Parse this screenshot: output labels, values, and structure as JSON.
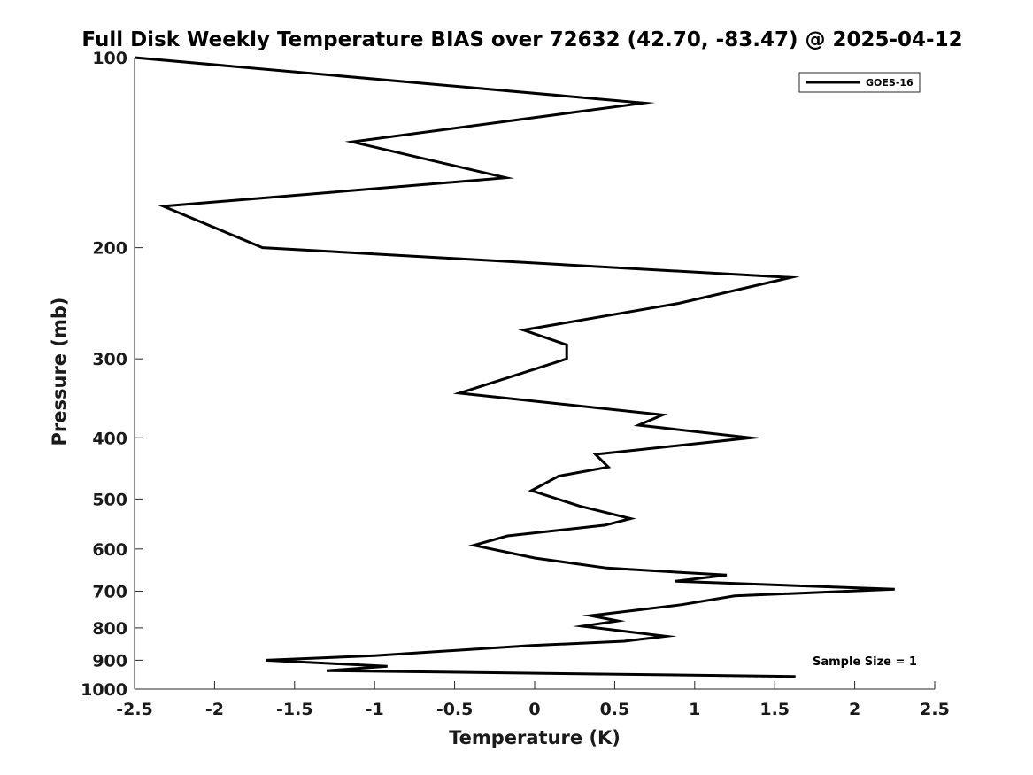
{
  "chart_data": {
    "type": "line",
    "title": "Full Disk Weekly Temperature BIAS over 72632 (42.70, -83.47) @ 2025-04-12",
    "xlabel": "Temperature (K)",
    "ylabel": "Pressure (mb)",
    "xlim": [
      -2.5,
      2.5
    ],
    "ylim": [
      100,
      1000
    ],
    "yscale": "log",
    "yreversed": true,
    "grid": false,
    "x_ticks": [
      -2.5,
      -2,
      -1.5,
      -1,
      -0.5,
      0,
      0.5,
      1,
      1.5,
      2,
      2.5
    ],
    "x_tick_labels": [
      "-2.5",
      "-2",
      "-1.5",
      "-1",
      "-0.5",
      "0",
      "0.5",
      "1",
      "1.5",
      "2",
      "2.5"
    ],
    "y_ticks": [
      100,
      200,
      300,
      400,
      500,
      600,
      700,
      800,
      900,
      1000
    ],
    "y_tick_labels": [
      "100",
      "200",
      "300",
      "400",
      "500",
      "600",
      "700",
      "800",
      "900",
      "1000"
    ],
    "legend": {
      "position": "top-right",
      "entries": [
        "GOES-16"
      ]
    },
    "annotation": "Sample Size = 1",
    "series": [
      {
        "name": "GOES-16",
        "color": "#000000",
        "points": [
          {
            "x": -2.5,
            "y": 100
          },
          {
            "x": 0.68,
            "y": 118
          },
          {
            "x": -1.14,
            "y": 136
          },
          {
            "x": -0.18,
            "y": 155
          },
          {
            "x": -2.32,
            "y": 172
          },
          {
            "x": -1.7,
            "y": 200
          },
          {
            "x": 1.6,
            "y": 223
          },
          {
            "x": 0.9,
            "y": 245
          },
          {
            "x": -0.07,
            "y": 270
          },
          {
            "x": 0.2,
            "y": 285
          },
          {
            "x": 0.2,
            "y": 300
          },
          {
            "x": -0.47,
            "y": 340
          },
          {
            "x": 0.8,
            "y": 368
          },
          {
            "x": 0.65,
            "y": 382
          },
          {
            "x": 1.35,
            "y": 400
          },
          {
            "x": 0.38,
            "y": 425
          },
          {
            "x": 0.46,
            "y": 445
          },
          {
            "x": 0.15,
            "y": 460
          },
          {
            "x": -0.02,
            "y": 485
          },
          {
            "x": 0.28,
            "y": 513
          },
          {
            "x": 0.6,
            "y": 537
          },
          {
            "x": 0.44,
            "y": 550
          },
          {
            "x": -0.17,
            "y": 572
          },
          {
            "x": -0.38,
            "y": 592
          },
          {
            "x": 0.0,
            "y": 620
          },
          {
            "x": 0.45,
            "y": 643
          },
          {
            "x": 1.2,
            "y": 660
          },
          {
            "x": 0.88,
            "y": 675
          },
          {
            "x": 2.25,
            "y": 695
          },
          {
            "x": 1.25,
            "y": 712
          },
          {
            "x": 0.92,
            "y": 735
          },
          {
            "x": 0.35,
            "y": 765
          },
          {
            "x": 0.52,
            "y": 780
          },
          {
            "x": 0.3,
            "y": 795
          },
          {
            "x": 0.82,
            "y": 825
          },
          {
            "x": 0.56,
            "y": 840
          },
          {
            "x": -0.02,
            "y": 853
          },
          {
            "x": -1.0,
            "y": 885
          },
          {
            "x": -1.68,
            "y": 900
          },
          {
            "x": -0.92,
            "y": 920
          },
          {
            "x": -1.3,
            "y": 935
          },
          {
            "x": 1.63,
            "y": 955
          }
        ]
      }
    ]
  }
}
